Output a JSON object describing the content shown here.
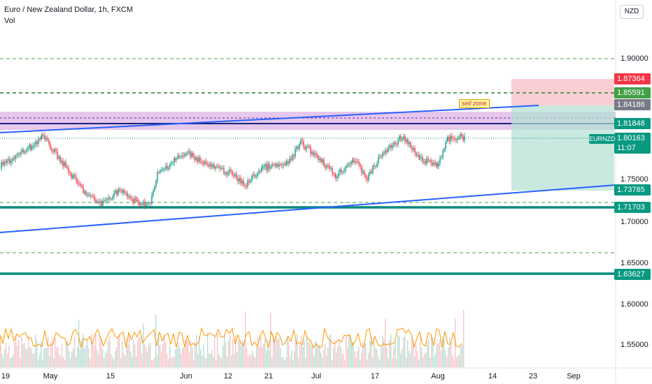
{
  "header": {
    "title": "Euro / New Zealand Dollar, 1h, FXCM",
    "indicator": "Vol"
  },
  "currency": "NZD",
  "y_axis": {
    "ticks": [
      "1.90000",
      "1.75000",
      "1.70000",
      "1.65000",
      "1.60000",
      "1.55000"
    ]
  },
  "x_axis": {
    "ticks": [
      "19",
      "May",
      "15",
      "Jun",
      "12",
      "21",
      "Jul",
      "17",
      "Aug",
      "14",
      "23",
      "Sep"
    ]
  },
  "price_tags": [
    {
      "label": "1.87364",
      "color": "#f23645"
    },
    {
      "label": "1.85591",
      "color": "#43a047"
    },
    {
      "label": "1.84186",
      "color": "#787b86"
    },
    {
      "label": "1.81848",
      "color": "#089981"
    },
    {
      "label": "1.80163",
      "color": "#089981"
    },
    {
      "label": "11:07",
      "color": "#089981"
    },
    {
      "label": "1.73785",
      "color": "#089981"
    },
    {
      "label": "1.71703",
      "color": "#089981"
    },
    {
      "label": "1.63627",
      "color": "#089981"
    }
  ],
  "symbol_tag": "EURNZD",
  "annotation": "sell zone",
  "colors": {
    "up": "#089981",
    "down": "#f23645",
    "trend": "#2962ff",
    "zone": "#e1bee7",
    "volume": "#ff9800"
  }
}
